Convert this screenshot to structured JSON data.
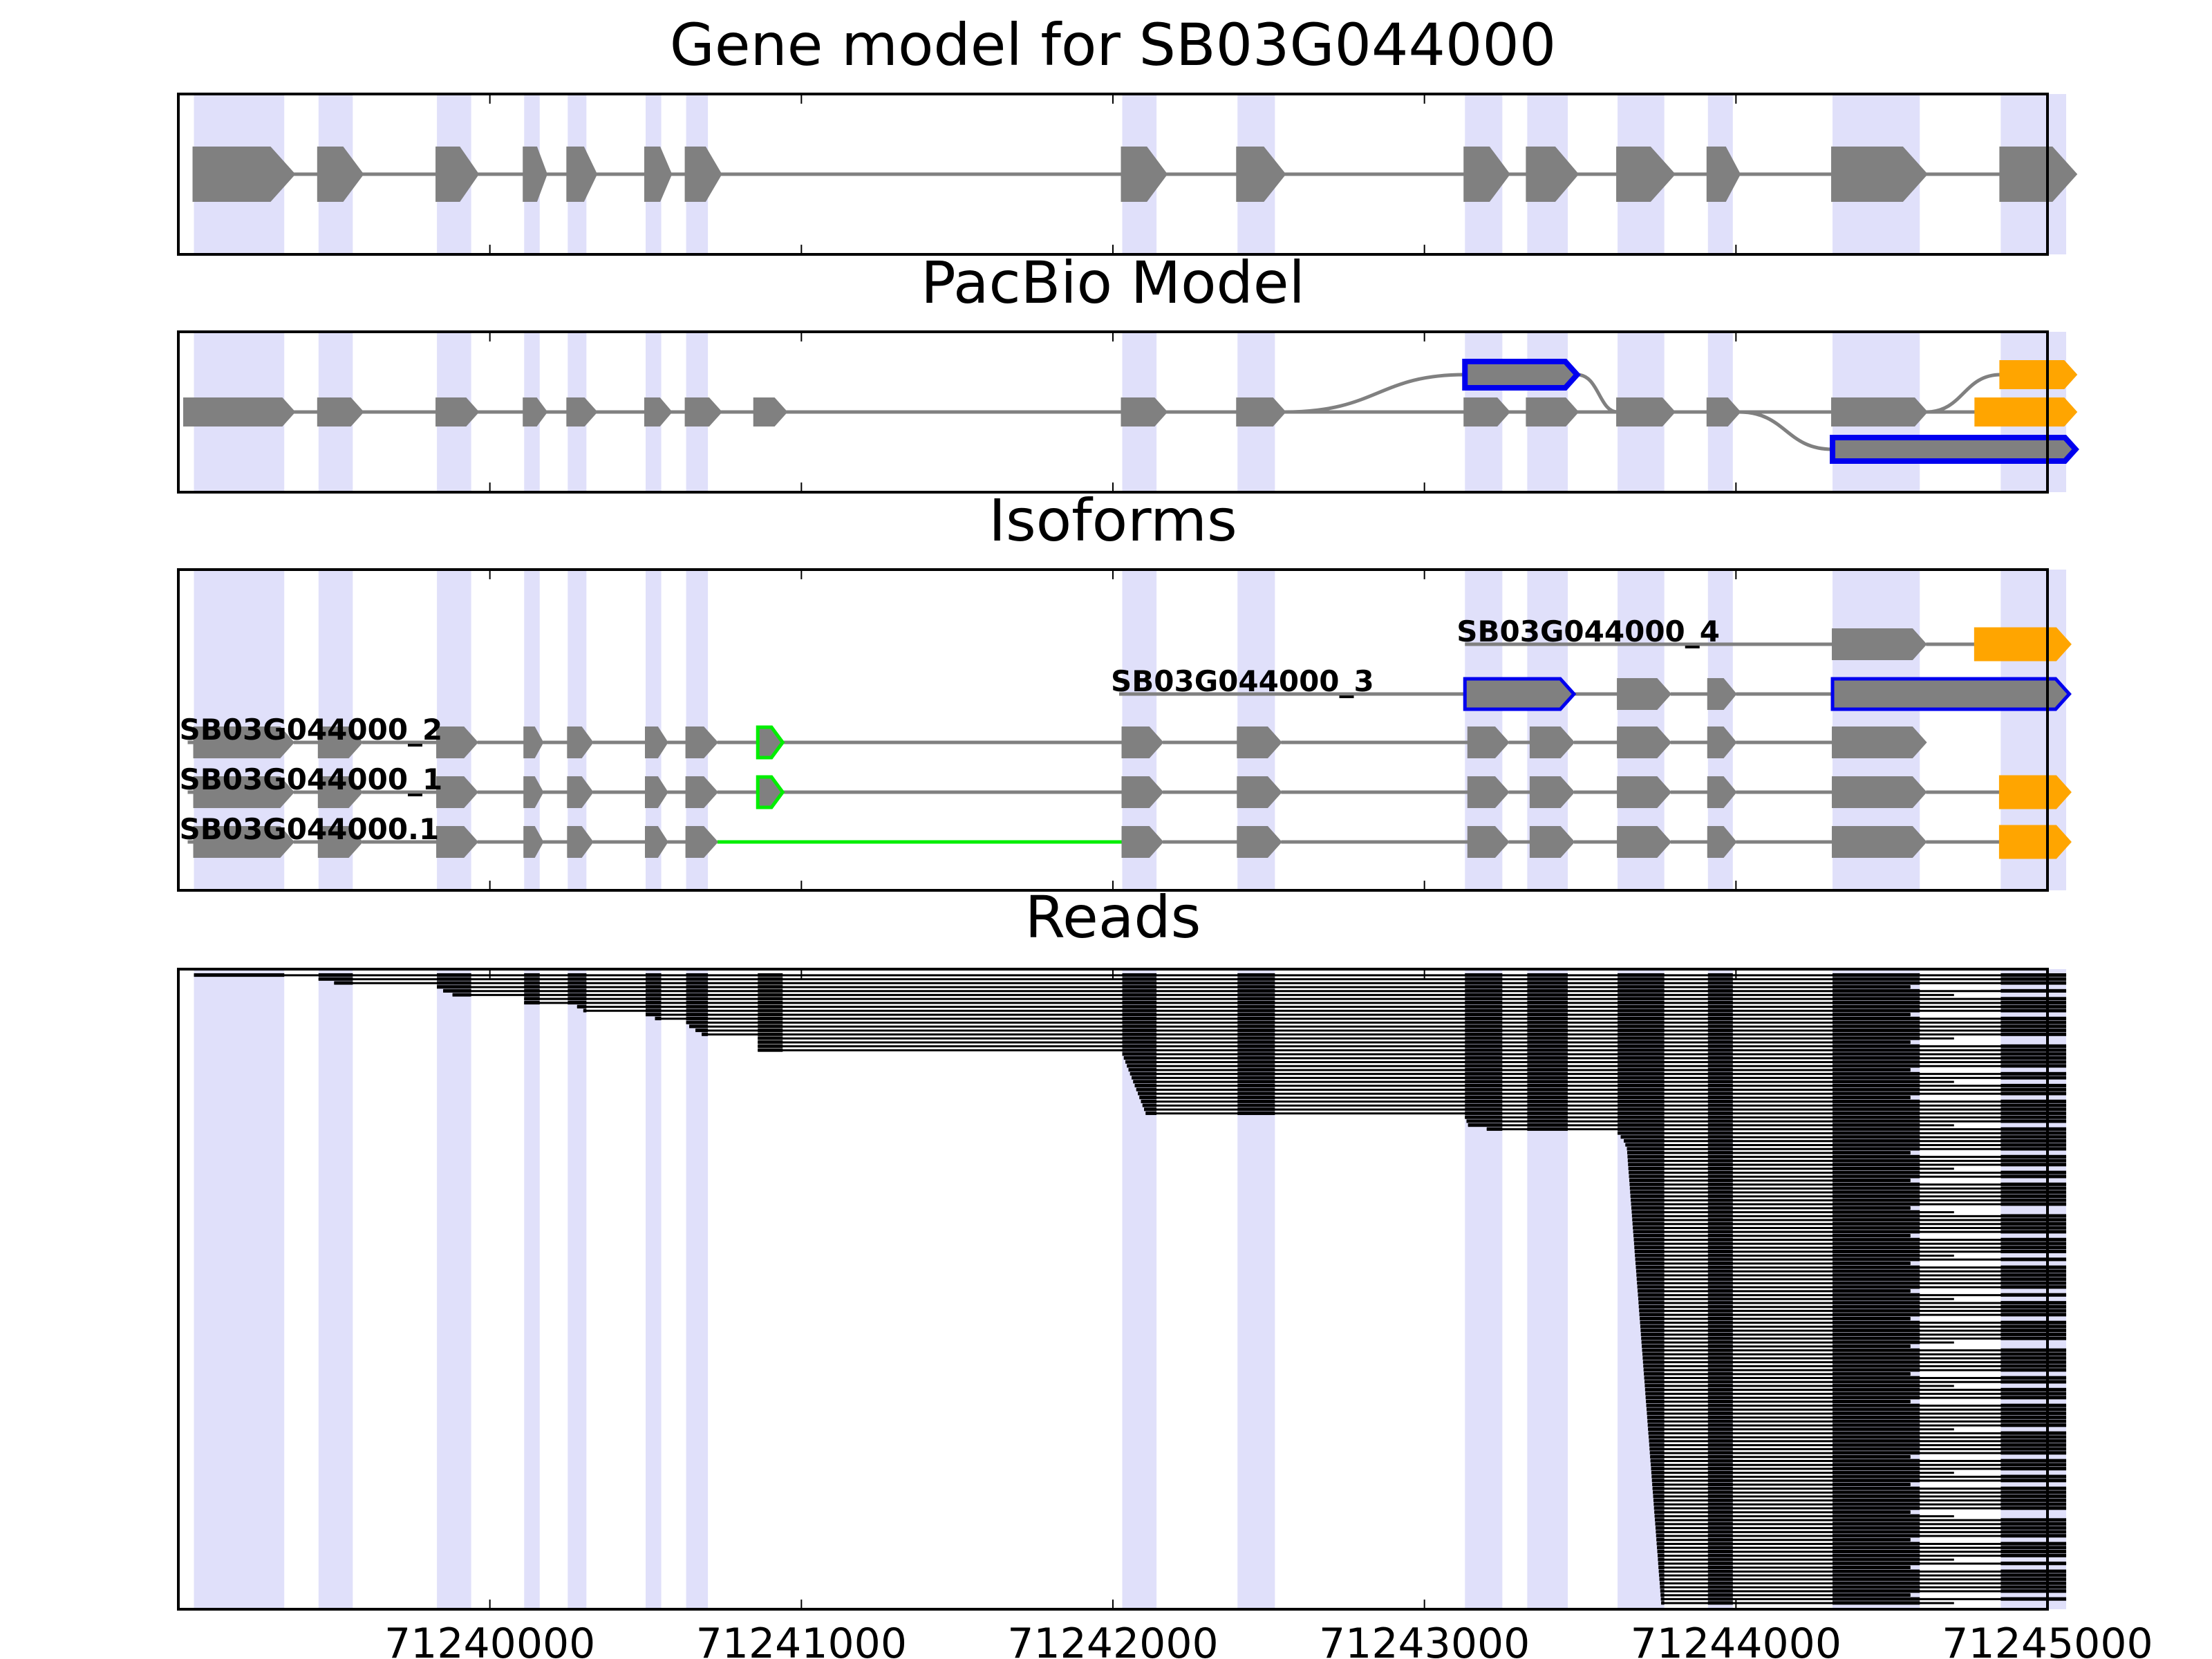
{
  "chart_data": [
    {
      "type": "gene-track",
      "title": "Gene model for SB03G044000",
      "xlim": [
        71239000,
        71245000
      ],
      "exons": [
        {
          "start": 71239050,
          "end": 71239370,
          "color": "gray",
          "edge": "gray"
        },
        {
          "start": 71239450,
          "end": 71239590,
          "color": "gray",
          "edge": "gray"
        },
        {
          "start": 71239830,
          "end": 71239960,
          "color": "gray",
          "edge": "gray"
        },
        {
          "start": 71240110,
          "end": 71240180,
          "color": "gray",
          "edge": "gray"
        },
        {
          "start": 71240250,
          "end": 71240340,
          "color": "gray",
          "edge": "gray"
        },
        {
          "start": 71240500,
          "end": 71240580,
          "color": "gray",
          "edge": "gray"
        },
        {
          "start": 71240630,
          "end": 71240740,
          "color": "gray",
          "edge": "gray"
        },
        {
          "start": 71242030,
          "end": 71242170,
          "color": "gray",
          "edge": "gray"
        },
        {
          "start": 71242400,
          "end": 71242550,
          "color": "gray",
          "edge": "gray"
        },
        {
          "start": 71243130,
          "end": 71243270,
          "color": "gray",
          "edge": "gray"
        },
        {
          "start": 71243330,
          "end": 71243490,
          "color": "gray",
          "edge": "gray"
        },
        {
          "start": 71243620,
          "end": 71243800,
          "color": "gray",
          "edge": "gray"
        },
        {
          "start": 71243910,
          "end": 71244010,
          "color": "gray",
          "edge": "gray"
        },
        {
          "start": 71244310,
          "end": 71244610,
          "color": "gray",
          "edge": "gray"
        },
        {
          "start": 71244850,
          "end": 71245090,
          "color": "gray",
          "edge": "gray"
        }
      ]
    },
    {
      "type": "pacbio-model",
      "title": "PacBio Model",
      "xlim": [
        71239000,
        71245000
      ],
      "rows": [
        {
          "level": 0,
          "exons": [
            {
              "start": 71239020,
              "end": 71239370,
              "color": "gray",
              "edge": "gray"
            },
            {
              "start": 71239450,
              "end": 71239590,
              "color": "gray",
              "edge": "gray"
            },
            {
              "start": 71239830,
              "end": 71239960,
              "color": "gray",
              "edge": "gray"
            },
            {
              "start": 71240110,
              "end": 71240180,
              "color": "gray",
              "edge": "gray"
            },
            {
              "start": 71240250,
              "end": 71240340,
              "color": "gray",
              "edge": "gray"
            },
            {
              "start": 71240500,
              "end": 71240580,
              "color": "gray",
              "edge": "gray"
            },
            {
              "start": 71240630,
              "end": 71240740,
              "color": "gray",
              "edge": "gray"
            },
            {
              "start": 71240850,
              "end": 71240950,
              "color": "gray",
              "edge": "gray"
            },
            {
              "start": 71242030,
              "end": 71242170,
              "color": "gray",
              "edge": "gray"
            },
            {
              "start": 71242400,
              "end": 71242550,
              "color": "gray",
              "edge": "gray"
            },
            {
              "start": 71243130,
              "end": 71243270,
              "color": "gray",
              "edge": "gray"
            },
            {
              "start": 71243330,
              "end": 71243490,
              "color": "gray",
              "edge": "gray"
            },
            {
              "start": 71243620,
              "end": 71243800,
              "color": "gray",
              "edge": "gray"
            },
            {
              "start": 71243910,
              "end": 71244010,
              "color": "gray",
              "edge": "gray"
            },
            {
              "start": 71244310,
              "end": 71244610,
              "color": "gray",
              "edge": "gray"
            },
            {
              "start": 71244770,
              "end": 71245090,
              "color": "orange",
              "edge": "orange"
            }
          ]
        },
        {
          "level": 1,
          "exons": [
            {
              "start": 71243130,
              "end": 71243490,
              "color": "gray",
              "edge": "blue"
            },
            {
              "start": 71244850,
              "end": 71245090,
              "color": "orange",
              "edge": "orange"
            }
          ]
        },
        {
          "level": -1,
          "exons": [
            {
              "start": 71244310,
              "end": 71245090,
              "color": "gray",
              "edge": "blue"
            }
          ]
        }
      ]
    },
    {
      "type": "isoforms",
      "title": "Isoforms",
      "xlim": [
        71239000,
        71245000
      ],
      "isoforms": [
        {
          "label": "SB03G044000_4",
          "label_x": 71243130,
          "first_intron_color": "gray",
          "exons": [
            {
              "start": 71244310,
              "end": 71244610,
              "color": "gray",
              "edge": "gray"
            },
            {
              "start": 71244770,
              "end": 71245070,
              "color": "orange",
              "edge": "orange"
            }
          ]
        },
        {
          "label": "SB03G044000_3",
          "label_x": 71242020,
          "first_intron_color": "gray",
          "exons": [
            {
              "start": 71243130,
              "end": 71243480,
              "color": "gray",
              "edge": "blue"
            },
            {
              "start": 71243620,
              "end": 71243790,
              "color": "gray",
              "edge": "gray"
            },
            {
              "start": 71243910,
              "end": 71244000,
              "color": "gray",
              "edge": "gray"
            },
            {
              "start": 71244310,
              "end": 71245070,
              "color": "gray",
              "edge": "blue"
            }
          ]
        },
        {
          "label": "SB03G044000_2",
          "label_x": 71239030,
          "first_intron_color": "gray",
          "exons": [
            {
              "start": 71239050,
              "end": 71239370,
              "color": "gray",
              "edge": "gray"
            },
            {
              "start": 71239450,
              "end": 71239590,
              "color": "gray",
              "edge": "gray"
            },
            {
              "start": 71239830,
              "end": 71239960,
              "color": "gray",
              "edge": "gray"
            },
            {
              "start": 71240110,
              "end": 71240170,
              "color": "gray",
              "edge": "gray"
            },
            {
              "start": 71240250,
              "end": 71240330,
              "color": "gray",
              "edge": "gray"
            },
            {
              "start": 71240500,
              "end": 71240570,
              "color": "gray",
              "edge": "gray"
            },
            {
              "start": 71240630,
              "end": 71240730,
              "color": "gray",
              "edge": "gray"
            },
            {
              "start": 71240860,
              "end": 71240940,
              "color": "gray",
              "edge": "lime"
            },
            {
              "start": 71242030,
              "end": 71242160,
              "color": "gray",
              "edge": "gray"
            },
            {
              "start": 71242400,
              "end": 71242540,
              "color": "gray",
              "edge": "gray"
            },
            {
              "start": 71243140,
              "end": 71243270,
              "color": "gray",
              "edge": "gray"
            },
            {
              "start": 71243340,
              "end": 71243480,
              "color": "gray",
              "edge": "gray"
            },
            {
              "start": 71243620,
              "end": 71243790,
              "color": "gray",
              "edge": "gray"
            },
            {
              "start": 71243910,
              "end": 71244000,
              "color": "gray",
              "edge": "gray"
            },
            {
              "start": 71244310,
              "end": 71244610,
              "color": "gray",
              "edge": "gray"
            }
          ]
        },
        {
          "label": "SB03G044000_1",
          "label_x": 71239030,
          "first_intron_color": "gray",
          "exons": [
            {
              "start": 71239050,
              "end": 71239370,
              "color": "gray",
              "edge": "gray"
            },
            {
              "start": 71239450,
              "end": 71239590,
              "color": "gray",
              "edge": "gray"
            },
            {
              "start": 71239830,
              "end": 71239960,
              "color": "gray",
              "edge": "gray"
            },
            {
              "start": 71240110,
              "end": 71240170,
              "color": "gray",
              "edge": "gray"
            },
            {
              "start": 71240250,
              "end": 71240330,
              "color": "gray",
              "edge": "gray"
            },
            {
              "start": 71240500,
              "end": 71240570,
              "color": "gray",
              "edge": "gray"
            },
            {
              "start": 71240630,
              "end": 71240730,
              "color": "gray",
              "edge": "gray"
            },
            {
              "start": 71240860,
              "end": 71240940,
              "color": "gray",
              "edge": "lime"
            },
            {
              "start": 71242030,
              "end": 71242160,
              "color": "gray",
              "edge": "gray"
            },
            {
              "start": 71242400,
              "end": 71242540,
              "color": "gray",
              "edge": "gray"
            },
            {
              "start": 71243140,
              "end": 71243270,
              "color": "gray",
              "edge": "gray"
            },
            {
              "start": 71243340,
              "end": 71243480,
              "color": "gray",
              "edge": "gray"
            },
            {
              "start": 71243620,
              "end": 71243790,
              "color": "gray",
              "edge": "gray"
            },
            {
              "start": 71243910,
              "end": 71244000,
              "color": "gray",
              "edge": "gray"
            },
            {
              "start": 71244310,
              "end": 71244610,
              "color": "gray",
              "edge": "gray"
            },
            {
              "start": 71244850,
              "end": 71245070,
              "color": "orange",
              "edge": "orange"
            }
          ]
        },
        {
          "label": "SB03G044000.1",
          "label_x": 71239030,
          "first_intron_color": "lime",
          "exons": [
            {
              "start": 71239050,
              "end": 71239370,
              "color": "gray",
              "edge": "gray"
            },
            {
              "start": 71239450,
              "end": 71239590,
              "color": "gray",
              "edge": "gray"
            },
            {
              "start": 71239830,
              "end": 71239960,
              "color": "gray",
              "edge": "gray"
            },
            {
              "start": 71240110,
              "end": 71240170,
              "color": "gray",
              "edge": "gray"
            },
            {
              "start": 71240250,
              "end": 71240330,
              "color": "gray",
              "edge": "gray"
            },
            {
              "start": 71240500,
              "end": 71240570,
              "color": "gray",
              "edge": "gray"
            },
            {
              "start": 71240630,
              "end": 71240730,
              "color": "gray",
              "edge": "gray"
            },
            {
              "start": 71242030,
              "end": 71242160,
              "color": "gray",
              "edge": "gray"
            },
            {
              "start": 71242400,
              "end": 71242540,
              "color": "gray",
              "edge": "gray"
            },
            {
              "start": 71243140,
              "end": 71243270,
              "color": "gray",
              "edge": "gray"
            },
            {
              "start": 71243340,
              "end": 71243480,
              "color": "gray",
              "edge": "gray"
            },
            {
              "start": 71243620,
              "end": 71243790,
              "color": "gray",
              "edge": "gray"
            },
            {
              "start": 71243910,
              "end": 71244000,
              "color": "gray",
              "edge": "gray"
            },
            {
              "start": 71244310,
              "end": 71244610,
              "color": "gray",
              "edge": "gray"
            },
            {
              "start": 71244850,
              "end": 71245070,
              "color": "orange",
              "edge": "orange"
            }
          ]
        }
      ]
    },
    {
      "type": "reads",
      "title": "Reads",
      "xlim": [
        71239000,
        71245000
      ],
      "xticks": [
        "71240000",
        "71241000",
        "71242000",
        "71243000",
        "71244000",
        "71245000"
      ],
      "read_count": 160,
      "read_starts": [
        71239050,
        71239450,
        71239500,
        71239830,
        71239850,
        71239880,
        71240110,
        71240110,
        71240280,
        71240300,
        71240500,
        71240530,
        71240630,
        71240640,
        71240660,
        71240680,
        71240860,
        71240860,
        71240860,
        71240860,
        71242030,
        71242035,
        71242040,
        71242045,
        71242050,
        71242055,
        71242060,
        71242065,
        71242070,
        71242075,
        71242080,
        71242085,
        71242090,
        71242095,
        71242100,
        71242105,
        71243130,
        71243135,
        71243140,
        71243200,
        71243620,
        71243630,
        71243640,
        71243645
      ],
      "late_start_first": 71243650,
      "late_start_last": 71243760,
      "read_end_max": 71245090,
      "colors": {
        "highlight": "#e0e0fa",
        "exon": "#808080",
        "blue": "#0000ee",
        "lime": "#00ee00",
        "orange": "#ffa500",
        "read": "#000000"
      }
    }
  ],
  "highlight_regions": [
    [
      71239050,
      71239340
    ],
    [
      71239450,
      71239560
    ],
    [
      71239830,
      71239940
    ],
    [
      71240110,
      71240160
    ],
    [
      71240250,
      71240310
    ],
    [
      71240500,
      71240550
    ],
    [
      71240630,
      71240700
    ],
    [
      71242030,
      71242140
    ],
    [
      71242400,
      71242520
    ],
    [
      71243130,
      71243250
    ],
    [
      71243330,
      71243460
    ],
    [
      71243620,
      71243770
    ],
    [
      71243910,
      71243990
    ],
    [
      71244310,
      71244590
    ],
    [
      71244850,
      71245060
    ]
  ]
}
